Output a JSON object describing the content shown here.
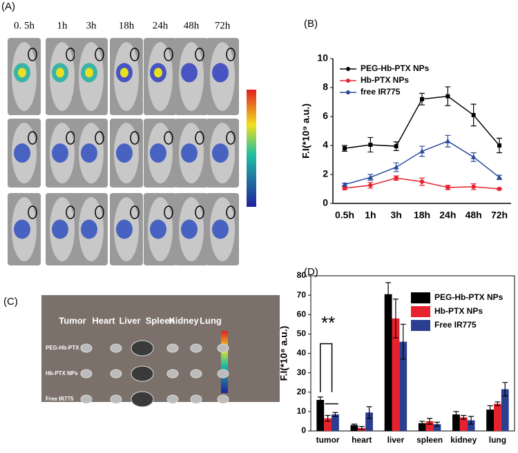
{
  "panel_a": {
    "label": "(A)",
    "times": [
      "0. 5h",
      "1h",
      "3h",
      "18h",
      "24h",
      "48h",
      "72h"
    ]
  },
  "panel_c": {
    "label": "(C)",
    "organs": [
      "Tumor",
      "Heart",
      "Liver",
      "Spleen",
      "Kidney",
      "Lung"
    ],
    "groups": [
      "PEG-Hb-PTX NPs",
      "Hb-PTX NPs",
      "Free IR775"
    ]
  },
  "chart_data": [
    {
      "type": "line",
      "panel_label": "(B)",
      "y_label": "F.I(*10⁹ a.u.)",
      "categories": [
        "0.5h",
        "1h",
        "3h",
        "18h",
        "24h",
        "48h",
        "72h"
      ],
      "ylim": [
        0,
        10
      ],
      "yticks": [
        0,
        2,
        4,
        6,
        8,
        10
      ],
      "legend": "upper left",
      "series": [
        {
          "name": "PEG-Hb-PTX NPs",
          "color": "#000000",
          "values": [
            3.8,
            4.05,
            3.95,
            7.2,
            7.4,
            6.1,
            4.0
          ],
          "errors": [
            0.2,
            0.5,
            0.3,
            0.4,
            0.65,
            0.75,
            0.5
          ]
        },
        {
          "name": "Hb-PTX NPs",
          "color": "#e8212e",
          "values": [
            1.05,
            1.25,
            1.75,
            1.5,
            1.1,
            1.15,
            1.0
          ],
          "errors": [
            0.1,
            0.2,
            0.15,
            0.25,
            0.15,
            0.2,
            0.05
          ]
        },
        {
          "name": "free IR775",
          "color": "#2a4a9a",
          "values": [
            1.3,
            1.8,
            2.5,
            3.6,
            4.3,
            3.2,
            1.8
          ],
          "errors": [
            0.1,
            0.2,
            0.3,
            0.35,
            0.4,
            0.3,
            0.15
          ]
        }
      ]
    },
    {
      "type": "bar",
      "panel_label": "(D)",
      "y_label": "F.I(*10⁸ a.u.)",
      "categories": [
        "tumor",
        "heart",
        "liver",
        "spleen",
        "kidney",
        "lung"
      ],
      "ylim": [
        0,
        80
      ],
      "yticks": [
        0,
        10,
        20,
        30,
        40,
        50,
        60,
        70,
        80
      ],
      "legend": "upper right",
      "annotation": "**",
      "series": [
        {
          "name": "PEG-Hb-PTX NPs",
          "color": "#000000",
          "values": [
            16,
            3,
            70.5,
            4,
            8.5,
            11
          ],
          "errors": [
            1.5,
            0.5,
            6,
            1,
            1.5,
            2
          ]
        },
        {
          "name": "Hb-PTX NPs",
          "color": "#e8212e",
          "values": [
            6.5,
            1.5,
            58,
            5,
            7,
            14
          ],
          "errors": [
            1.5,
            0.8,
            10,
            1.5,
            1,
            1
          ]
        },
        {
          "name": "Free IR775",
          "color": "#2a3f8f",
          "values": [
            8.5,
            9.5,
            46,
            3.5,
            5.5,
            21.5
          ],
          "errors": [
            1,
            3,
            9,
            1,
            2,
            3.5
          ]
        }
      ]
    }
  ]
}
